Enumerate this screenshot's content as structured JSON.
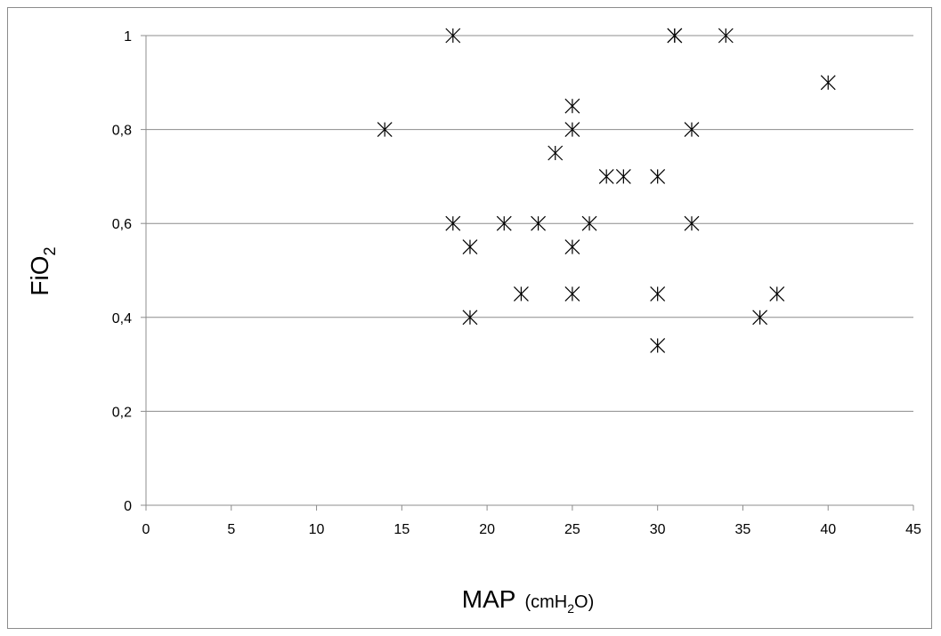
{
  "chart_data": {
    "type": "scatter",
    "title": "",
    "xlabel": {
      "main": "MAP",
      "unit_prefix": "(cmH",
      "unit_sub": "2",
      "unit_suffix": "O)"
    },
    "ylabel": {
      "main": "FiO",
      "sub": "2"
    },
    "xlim": [
      0,
      45
    ],
    "ylim": [
      0,
      1
    ],
    "x_ticks": [
      0,
      5,
      10,
      15,
      20,
      25,
      30,
      35,
      40,
      45
    ],
    "x_tick_labels": [
      "0",
      "5",
      "10",
      "15",
      "20",
      "25",
      "30",
      "35",
      "40",
      "45"
    ],
    "y_ticks": [
      0,
      0.2,
      0.4,
      0.6,
      0.8,
      1
    ],
    "y_tick_labels": [
      "0",
      "0,2",
      "0,4",
      "0,6",
      "0,8",
      "1"
    ],
    "grid": "horizontal",
    "marker": "asterisk",
    "colors": {
      "marker": "#000000",
      "grid": "#8c8c8c",
      "axis": "#8c8c8c"
    },
    "points": [
      {
        "x": 18,
        "y": 1.0
      },
      {
        "x": 31,
        "y": 1.0
      },
      {
        "x": 31,
        "y": 1.0
      },
      {
        "x": 34,
        "y": 1.0
      },
      {
        "x": 40,
        "y": 0.9
      },
      {
        "x": 14,
        "y": 0.8
      },
      {
        "x": 25,
        "y": 0.85
      },
      {
        "x": 25,
        "y": 0.8
      },
      {
        "x": 32,
        "y": 0.8
      },
      {
        "x": 24,
        "y": 0.75
      },
      {
        "x": 27,
        "y": 0.7
      },
      {
        "x": 28,
        "y": 0.7
      },
      {
        "x": 30,
        "y": 0.7
      },
      {
        "x": 18,
        "y": 0.6
      },
      {
        "x": 21,
        "y": 0.6
      },
      {
        "x": 23,
        "y": 0.6
      },
      {
        "x": 26,
        "y": 0.6
      },
      {
        "x": 32,
        "y": 0.6
      },
      {
        "x": 19,
        "y": 0.55
      },
      {
        "x": 25,
        "y": 0.55
      },
      {
        "x": 22,
        "y": 0.45
      },
      {
        "x": 25,
        "y": 0.45
      },
      {
        "x": 30,
        "y": 0.45
      },
      {
        "x": 37,
        "y": 0.45
      },
      {
        "x": 19,
        "y": 0.4
      },
      {
        "x": 36,
        "y": 0.4
      },
      {
        "x": 30,
        "y": 0.34
      }
    ]
  }
}
